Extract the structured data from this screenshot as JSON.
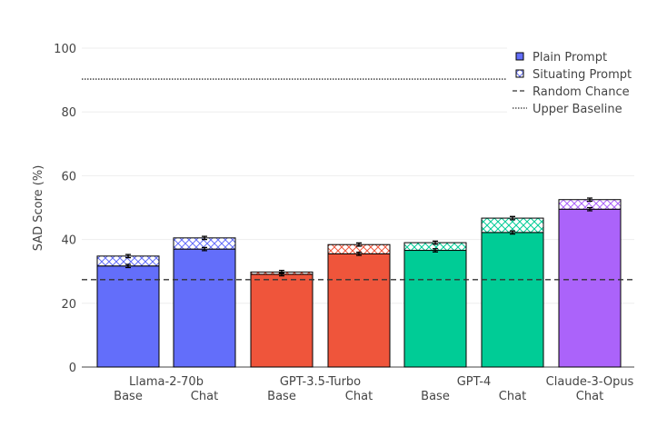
{
  "chart_data": {
    "type": "bar",
    "stacked": true,
    "ylabel": "SAD Score (%)",
    "xlabel": "",
    "ylim": [
      0,
      100
    ],
    "yticks": [
      0,
      20,
      40,
      60,
      80,
      100
    ],
    "grid": true,
    "legend_position": "top-right",
    "groups": [
      "Llama-2-70b",
      "GPT-3.5-Turbo",
      "GPT-4",
      "Claude-3-Opus"
    ],
    "bars": [
      {
        "group": "Llama-2-70b",
        "variant": "Base",
        "plain": 31.7,
        "situating": 34.8,
        "color": "#636efa"
      },
      {
        "group": "Llama-2-70b",
        "variant": "Chat",
        "plain": 37.0,
        "situating": 40.5,
        "color": "#636efa"
      },
      {
        "group": "GPT-3.5-Turbo",
        "variant": "Base",
        "plain": 29.1,
        "situating": 29.8,
        "color": "#ef553b"
      },
      {
        "group": "GPT-3.5-Turbo",
        "variant": "Chat",
        "plain": 35.5,
        "situating": 38.4,
        "color": "#ef553b"
      },
      {
        "group": "GPT-4",
        "variant": "Base",
        "plain": 36.6,
        "situating": 39.0,
        "color": "#00cc96"
      },
      {
        "group": "GPT-4",
        "variant": "Chat",
        "plain": 42.2,
        "situating": 46.7,
        "color": "#00cc96"
      },
      {
        "group": "Claude-3-Opus",
        "variant": "Chat",
        "plain": 49.5,
        "situating": 52.5,
        "color": "#ab63fa"
      }
    ],
    "error": 0.5,
    "random_chance": 27.4,
    "upper_baseline": 90.3,
    "legend": [
      "Plain Prompt",
      "Situating Prompt",
      "Random Chance",
      "Upper Baseline"
    ]
  }
}
